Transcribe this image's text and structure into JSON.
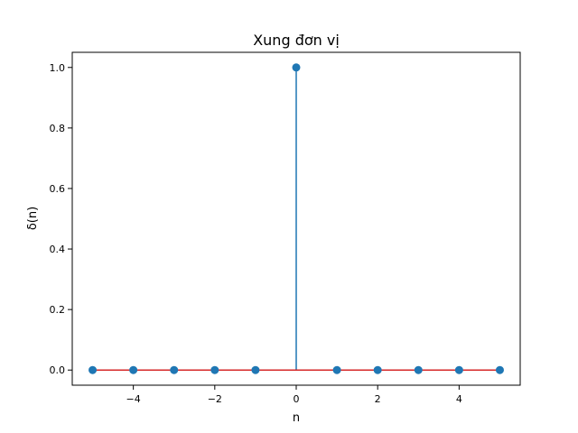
{
  "chart_data": {
    "type": "stem",
    "title": "Xung đơn vị",
    "xlabel": "n",
    "ylabel": "δ(n)",
    "x": [
      -5,
      -4,
      -3,
      -2,
      -1,
      0,
      1,
      2,
      3,
      4,
      5
    ],
    "y": [
      0,
      0,
      0,
      0,
      0,
      1,
      0,
      0,
      0,
      0,
      0
    ],
    "xlim": [
      -5.5,
      5.5
    ],
    "ylim": [
      -0.05,
      1.05
    ],
    "x_ticks": [
      -4,
      -2,
      0,
      2,
      4
    ],
    "x_tick_labels": [
      "−4",
      "−2",
      "0",
      "2",
      "4"
    ],
    "y_ticks": [
      0.0,
      0.2,
      0.4,
      0.6,
      0.8,
      1.0
    ],
    "y_tick_labels": [
      "0.0",
      "0.2",
      "0.4",
      "0.6",
      "0.8",
      "1.0"
    ],
    "baseline": 0,
    "grid": false,
    "colors": {
      "stem": "#1f77b4",
      "marker": "#1f77b4",
      "baseline": "#d62728"
    }
  }
}
